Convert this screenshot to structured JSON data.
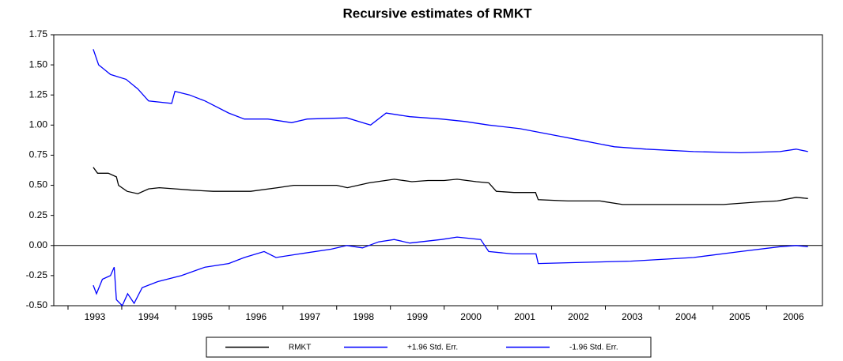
{
  "chart_data": {
    "type": "line",
    "title": "Recursive estimates of RMKT",
    "xlim": [
      1992.735,
      2007.04
    ],
    "xticks": [
      1993,
      1994,
      1995,
      1996,
      1997,
      1998,
      1999,
      2000,
      2001,
      2002,
      2003,
      2004,
      2005,
      2006
    ],
    "ylim": [
      -0.5,
      1.75
    ],
    "yticks": [
      {
        "value": -0.5,
        "label": "-0.50"
      },
      {
        "value": -0.25,
        "label": "-0.25"
      },
      {
        "value": 0,
        "label": "0.00"
      },
      {
        "value": 0.25,
        "label": "0.25"
      },
      {
        "value": 0.5,
        "label": "0.50"
      },
      {
        "value": 0.75,
        "label": "0.75"
      },
      {
        "value": 1,
        "label": "1.00"
      },
      {
        "value": 1.25,
        "label": "1.25"
      },
      {
        "value": 1.5,
        "label": "1.50"
      },
      {
        "value": 1.75,
        "label": "1.75"
      }
    ],
    "zero_line": true,
    "legend": "bottom",
    "series": [
      {
        "name": "RMKT",
        "color": "#000000",
        "x": [
          1993.47,
          1993.55,
          1993.75,
          1993.9,
          1993.94,
          1994.1,
          1994.3,
          1994.5,
          1994.7,
          1995.0,
          1995.3,
          1995.7,
          1996.0,
          1996.4,
          1996.9,
          1997.2,
          1997.6,
          1998.0,
          1998.2,
          1998.6,
          1999.07,
          1999.4,
          1999.7,
          2000.0,
          2000.24,
          2000.6,
          2000.83,
          2000.97,
          2001.3,
          2001.7,
          2001.75,
          2002.3,
          2002.9,
          2003.32,
          2003.9,
          2004.5,
          2005.2,
          2005.8,
          2006.2,
          2006.55,
          2006.77
        ],
        "values": [
          0.65,
          0.6,
          0.6,
          0.57,
          0.5,
          0.45,
          0.43,
          0.47,
          0.48,
          0.47,
          0.46,
          0.45,
          0.45,
          0.45,
          0.48,
          0.5,
          0.5,
          0.5,
          0.48,
          0.52,
          0.55,
          0.53,
          0.54,
          0.54,
          0.55,
          0.53,
          0.52,
          0.45,
          0.44,
          0.44,
          0.38,
          0.37,
          0.37,
          0.34,
          0.34,
          0.34,
          0.34,
          0.36,
          0.37,
          0.4,
          0.39
        ]
      },
      {
        "name": "+1.96 Std. Err.",
        "color": "#0000ff",
        "x": [
          1993.47,
          1993.57,
          1993.79,
          1994.08,
          1994.3,
          1994.5,
          1994.93,
          1994.99,
          1995.26,
          1995.55,
          1995.99,
          1996.28,
          1996.72,
          1997.16,
          1997.45,
          1998.19,
          1998.48,
          1998.63,
          1998.92,
          1999.36,
          1999.95,
          2000.39,
          2000.83,
          2001.41,
          2002.0,
          2002.59,
          2003.17,
          2003.76,
          2004.64,
          2005.52,
          2006.25,
          2006.55,
          2006.77
        ],
        "values": [
          1.63,
          1.5,
          1.42,
          1.38,
          1.3,
          1.2,
          1.18,
          1.28,
          1.25,
          1.2,
          1.1,
          1.05,
          1.05,
          1.02,
          1.05,
          1.06,
          1.02,
          1.0,
          1.1,
          1.07,
          1.05,
          1.03,
          1.0,
          0.97,
          0.92,
          0.87,
          0.82,
          0.8,
          0.78,
          0.77,
          0.78,
          0.8,
          0.78
        ]
      },
      {
        "name": "-1.96 Std. Err.",
        "color": "#0000ff",
        "x": [
          1993.47,
          1993.53,
          1993.64,
          1993.79,
          1993.86,
          1993.9,
          1994.01,
          1994.11,
          1994.23,
          1994.38,
          1994.67,
          1995.11,
          1995.55,
          1995.99,
          1996.28,
          1996.65,
          1996.87,
          1997.31,
          1997.9,
          1998.19,
          1998.48,
          1998.78,
          1999.07,
          1999.36,
          1999.95,
          2000.24,
          2000.68,
          2000.83,
          2001.27,
          2001.71,
          2001.75,
          2002.59,
          2003.47,
          2004.64,
          2005.52,
          2006.25,
          2006.55,
          2006.77
        ],
        "values": [
          -0.33,
          -0.4,
          -0.28,
          -0.25,
          -0.18,
          -0.45,
          -0.5,
          -0.4,
          -0.48,
          -0.35,
          -0.3,
          -0.25,
          -0.18,
          -0.15,
          -0.1,
          -0.05,
          -0.1,
          -0.07,
          -0.03,
          0.0,
          -0.02,
          0.03,
          0.05,
          0.02,
          0.05,
          0.07,
          0.05,
          -0.05,
          -0.07,
          -0.07,
          -0.15,
          -0.14,
          -0.13,
          -0.1,
          -0.05,
          -0.01,
          0.0,
          -0.01
        ]
      }
    ]
  }
}
